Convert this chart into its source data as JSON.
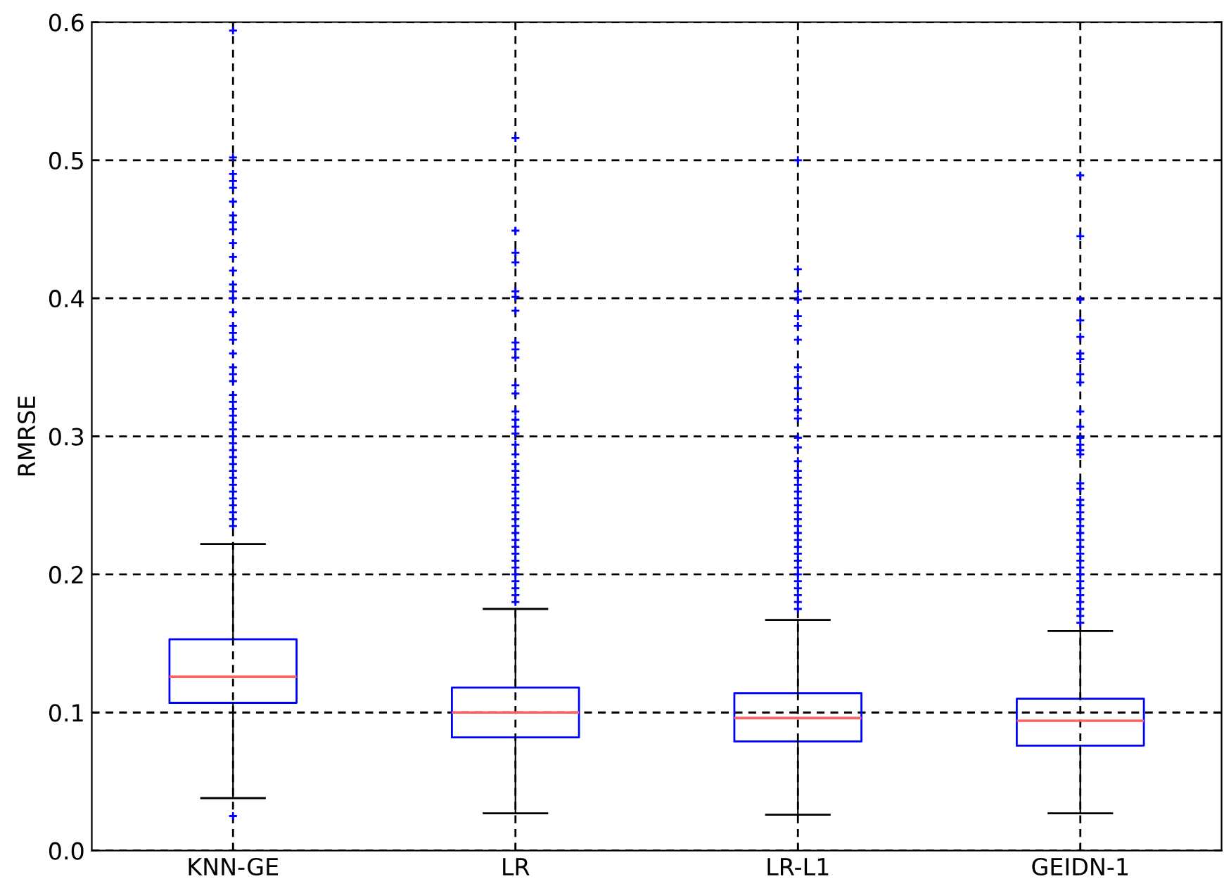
{
  "chart_data": {
    "type": "box",
    "ylabel": "RMRSE",
    "categories": [
      "KNN-GE",
      "LR",
      "LR-L1",
      "GEIDN-1"
    ],
    "ylim": [
      0,
      0.6
    ],
    "yticks": [
      {
        "value": 0,
        "label": "0.0"
      },
      0.1,
      0.2,
      0.3,
      0.4,
      0.5,
      0.6
    ],
    "grid": true,
    "marker": "cross",
    "series": [
      {
        "color": "#0000ff",
        "boxes": [
          {
            "low": 0.038,
            "q1": 0.107,
            "median": 0.126,
            "q3": 0.153,
            "high": 0.222,
            "outliers": [
              0.594,
              0.502,
              0.49,
              0.485,
              0.48,
              0.47,
              0.46,
              0.455,
              0.45,
              0.44,
              0.43,
              0.42,
              0.41,
              0.405,
              0.4,
              0.39,
              0.38,
              0.375,
              0.37,
              0.36,
              0.35,
              0.345,
              0.34,
              0.33,
              0.325,
              0.32,
              0.315,
              0.31,
              0.305,
              0.3,
              0.295,
              0.29,
              0.285,
              0.28,
              0.275,
              0.27,
              0.265,
              0.26,
              0.255,
              0.25,
              0.245,
              0.24,
              0.235,
              0.025
            ]
          },
          {
            "low": 0.027,
            "q1": 0.082,
            "median": 0.1,
            "q3": 0.118,
            "high": 0.175,
            "outliers": [
              0.516,
              0.449,
              0.433,
              0.426,
              0.405,
              0.401,
              0.391,
              0.368,
              0.363,
              0.357,
              0.337,
              0.331,
              0.318,
              0.312,
              0.307,
              0.302,
              0.294,
              0.287,
              0.28,
              0.275,
              0.27,
              0.265,
              0.26,
              0.255,
              0.25,
              0.245,
              0.24,
              0.235,
              0.23,
              0.225,
              0.22,
              0.215,
              0.21,
              0.205,
              0.2,
              0.195,
              0.19,
              0.185,
              0.18
            ]
          },
          {
            "low": 0.026,
            "q1": 0.079,
            "median": 0.096,
            "q3": 0.114,
            "high": 0.167,
            "outliers": [
              0.5,
              0.421,
              0.405,
              0.399,
              0.387,
              0.38,
              0.37,
              0.35,
              0.343,
              0.335,
              0.327,
              0.319,
              0.313,
              0.299,
              0.292,
              0.282,
              0.275,
              0.27,
              0.265,
              0.26,
              0.255,
              0.25,
              0.245,
              0.24,
              0.235,
              0.23,
              0.225,
              0.22,
              0.215,
              0.21,
              0.205,
              0.2,
              0.195,
              0.19,
              0.185,
              0.18,
              0.175
            ]
          },
          {
            "low": 0.027,
            "q1": 0.076,
            "median": 0.094,
            "q3": 0.11,
            "high": 0.159,
            "outliers": [
              0.489,
              0.445,
              0.399,
              0.384,
              0.372,
              0.36,
              0.356,
              0.345,
              0.339,
              0.318,
              0.307,
              0.299,
              0.294,
              0.29,
              0.287,
              0.266,
              0.262,
              0.254,
              0.25,
              0.245,
              0.24,
              0.235,
              0.23,
              0.225,
              0.22,
              0.215,
              0.21,
              0.205,
              0.2,
              0.195,
              0.19,
              0.185,
              0.18,
              0.175,
              0.17,
              0.165
            ]
          }
        ]
      }
    ]
  }
}
